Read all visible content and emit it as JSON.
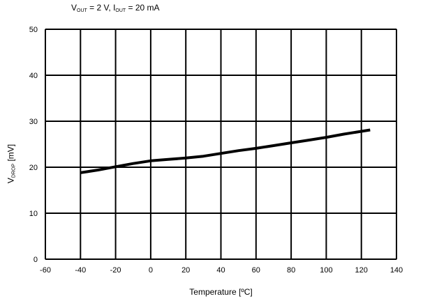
{
  "chart_data": {
    "type": "line",
    "condition": {
      "v_main": "V",
      "v_sub": "OUT",
      "v_val": " = 2 V, ",
      "i_main": "I",
      "i_sub": "OUT",
      "i_val": " = 20 mA"
    },
    "xlabel": "Temperature [ºC]",
    "ylabel": {
      "main": "V",
      "sub": "DROP",
      "unit": " [mV]"
    },
    "xlim": [
      -60,
      140
    ],
    "ylim": [
      0,
      50
    ],
    "xticks": [
      -60,
      -40,
      -20,
      0,
      20,
      40,
      60,
      80,
      100,
      120,
      140
    ],
    "yticks": [
      0,
      10,
      20,
      30,
      40,
      50
    ],
    "grid": true,
    "series": [
      {
        "x": [
          -40,
          -30,
          -20,
          -10,
          0,
          10,
          20,
          30,
          40,
          50,
          60,
          70,
          80,
          90,
          100,
          110,
          120,
          125
        ],
        "y": [
          18.8,
          19.4,
          20.1,
          20.8,
          21.4,
          21.7,
          22.0,
          22.4,
          23.0,
          23.6,
          24.1,
          24.7,
          25.3,
          25.9,
          26.5,
          27.2,
          27.8,
          28.1
        ],
        "color": "#000000"
      }
    ]
  }
}
